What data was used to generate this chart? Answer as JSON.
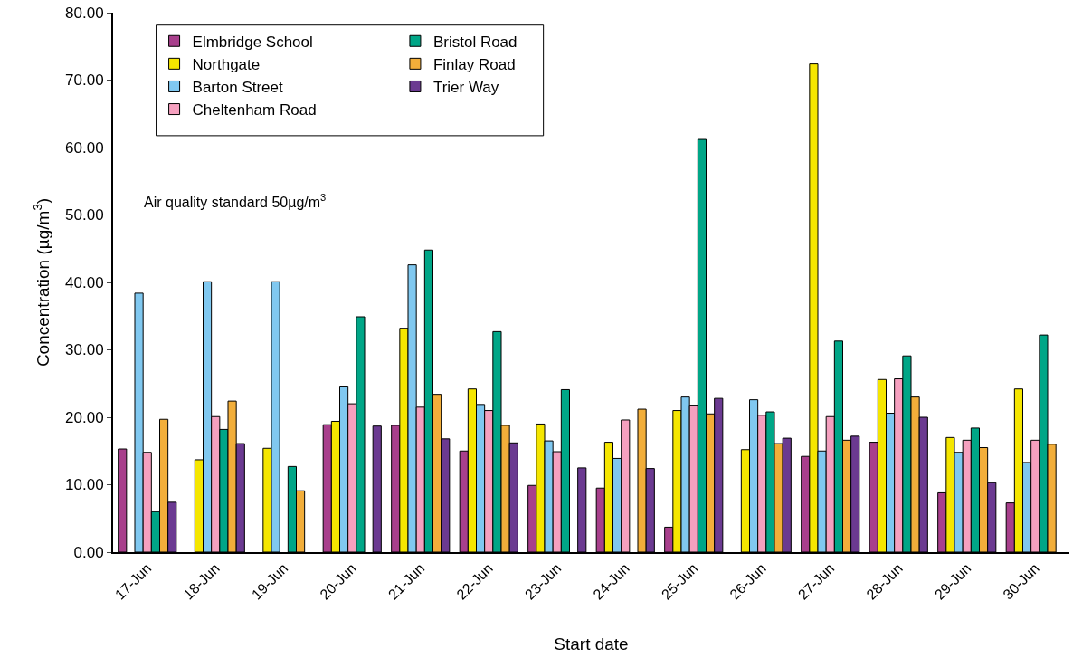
{
  "chart_data": {
    "type": "bar",
    "xlabel": "Start date",
    "ylabel": "Concentration (µg/m$^{3}$)",
    "categories": [
      "17-Jun",
      "18-Jun",
      "19-Jun",
      "20-Jun",
      "21-Jun",
      "22-Jun",
      "23-Jun",
      "24-Jun",
      "25-Jun",
      "26-Jun",
      "27-Jun",
      "28-Jun",
      "29-Jun",
      "30-Jun"
    ],
    "series": [
      {
        "name": "Elmbridge School",
        "color": "#a83f8c",
        "values": [
          15.3,
          null,
          null,
          18.9,
          18.8,
          15.0,
          9.9,
          9.5,
          3.7,
          null,
          14.2,
          16.3,
          8.8,
          7.3
        ]
      },
      {
        "name": "Northgate",
        "color": "#f5e600",
        "values": [
          null,
          13.7,
          15.4,
          19.4,
          33.2,
          24.2,
          19.0,
          16.3,
          21.0,
          15.2,
          72.4,
          25.6,
          17.0,
          24.2
        ]
      },
      {
        "name": "Barton Street",
        "color": "#80c8f0",
        "values": [
          38.4,
          40.1,
          40.1,
          24.5,
          42.6,
          21.9,
          16.5,
          13.9,
          23.0,
          22.6,
          15.0,
          20.6,
          14.8,
          13.3
        ]
      },
      {
        "name": "Cheltenham Road",
        "color": "#f5a0bf",
        "values": [
          14.8,
          20.1,
          null,
          22.0,
          21.5,
          21.0,
          14.9,
          19.6,
          21.8,
          20.3,
          20.1,
          25.7,
          16.6,
          16.6
        ]
      },
      {
        "name": "Bristol Road",
        "color": "#00a687",
        "values": [
          6.0,
          18.2,
          12.7,
          34.9,
          44.8,
          32.7,
          24.1,
          null,
          61.2,
          20.8,
          31.3,
          29.1,
          18.4,
          32.2
        ]
      },
      {
        "name": "Finlay Road",
        "color": "#f2ae3a",
        "values": [
          19.7,
          22.4,
          9.1,
          null,
          23.4,
          18.8,
          null,
          21.2,
          20.5,
          16.1,
          16.6,
          23.0,
          15.5,
          16.0
        ]
      },
      {
        "name": "Trier Way",
        "color": "#6b3a91",
        "values": [
          7.4,
          16.1,
          null,
          18.7,
          16.8,
          16.2,
          12.5,
          12.4,
          22.8,
          16.9,
          17.2,
          20.0,
          10.3,
          null
        ]
      }
    ],
    "ylim": [
      0,
      80
    ],
    "yticks": [
      {
        "value": 0,
        "label": "0.00"
      },
      {
        "value": 10,
        "label": "10.00"
      },
      {
        "value": 20,
        "label": "20.00"
      },
      {
        "value": 30,
        "label": "30.00"
      },
      {
        "value": 40,
        "label": "40.00"
      },
      {
        "value": 50,
        "label": "50.00"
      },
      {
        "value": 60,
        "label": "60.00"
      },
      {
        "value": 70,
        "label": "70.00"
      },
      {
        "value": 80,
        "label": "80.00"
      }
    ],
    "ref_lines": [
      {
        "axis": "y",
        "value": 50,
        "label": "Air quality standard 50µg/m$^{3}$",
        "color": "#000000"
      }
    ],
    "grid": false,
    "legend": "top left"
  }
}
